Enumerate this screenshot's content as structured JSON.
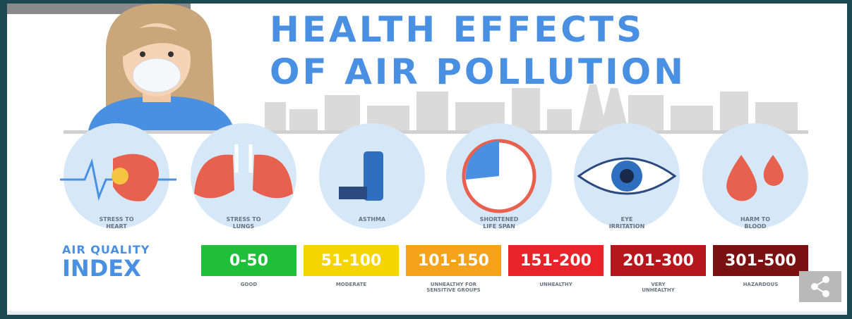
{
  "header": {
    "title_lines": [
      "HEALTH EFFECTS",
      "OF AIR POLLUTION"
    ]
  },
  "effects": [
    {
      "label": "STRESS TO\nHEART"
    },
    {
      "label": "STRESS TO\nLUNGS"
    },
    {
      "label": "ASTHMA"
    },
    {
      "label": "SHORTENED\nLIFE SPAN"
    },
    {
      "label": "EYE\nIRRITATION"
    },
    {
      "label": "HARM TO\nBLOOD"
    }
  ],
  "aqi": {
    "title_lines": [
      "AIR QUALITY",
      "INDEX"
    ],
    "levels": [
      {
        "range": "0-50",
        "label": "GOOD",
        "color": "#1fbf3a"
      },
      {
        "range": "51-100",
        "label": "MODERATE",
        "color": "#f5d400"
      },
      {
        "range": "101-150",
        "label": "UNHEALTHY FOR\nSENSITIVE GROUPS",
        "color": "#f7a21b"
      },
      {
        "range": "151-200",
        "label": "UNHEALTHY",
        "color": "#e8232a"
      },
      {
        "range": "201-300",
        "label": "VERY\nUNHEALTHY",
        "color": "#b5171c"
      },
      {
        "range": "301-500",
        "label": "HAZARDOUS",
        "color": "#7a1212"
      }
    ]
  }
}
